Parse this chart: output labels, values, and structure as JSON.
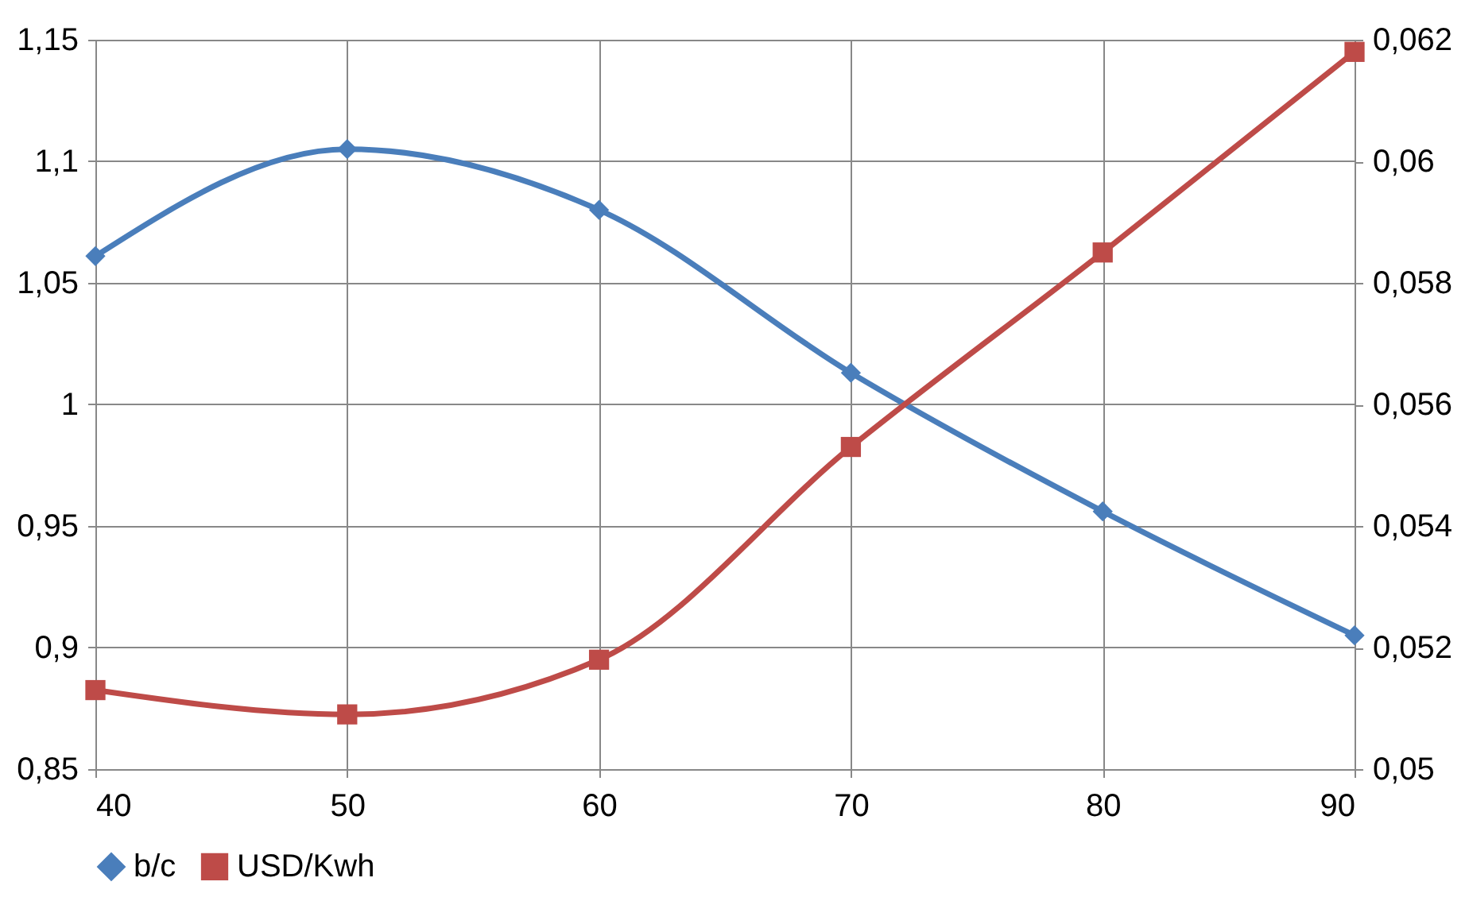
{
  "chart_data": {
    "type": "line",
    "x": [
      40,
      50,
      60,
      70,
      80,
      90
    ],
    "xlim": [
      40,
      90
    ],
    "xticks": [
      40,
      50,
      60,
      70,
      80,
      90
    ],
    "ylim": [
      0.85,
      1.15
    ],
    "yticks": [
      {
        "value": 0.85,
        "label": "0,85"
      },
      {
        "value": 0.9,
        "label": "0,9"
      },
      {
        "value": 0.95,
        "label": "0,95"
      },
      {
        "value": 1,
        "label": "1"
      },
      {
        "value": 1.05,
        "label": "1,05"
      },
      {
        "value": 1.1,
        "label": "1,1"
      },
      {
        "value": 1.15,
        "label": "1,15"
      }
    ],
    "y2lim": [
      0.05,
      0.062
    ],
    "y2ticks": [
      {
        "value": 0.05,
        "label": "0,05"
      },
      {
        "value": 0.052,
        "label": "0,052"
      },
      {
        "value": 0.054,
        "label": "0,054"
      },
      {
        "value": 0.056,
        "label": "0,056"
      },
      {
        "value": 0.058,
        "label": "0,058"
      },
      {
        "value": 0.06,
        "label": "0,06"
      },
      {
        "value": 0.062,
        "label": "0,062"
      }
    ],
    "series": [
      {
        "name": "b/c",
        "color": "#4a7ebb",
        "marker": "diamond",
        "values": [
          1.061,
          1.105,
          1.08,
          1.013,
          0.956,
          0.905
        ]
      },
      {
        "name": "USD/Kwh",
        "color": "#be4b48",
        "marker": "square",
        "axis": "y2",
        "values": [
          0.0513,
          0.0509,
          0.0518,
          0.0553,
          0.0585,
          0.0618
        ]
      }
    ],
    "grid": true,
    "legend": "bottom",
    "line_style": "solid"
  }
}
